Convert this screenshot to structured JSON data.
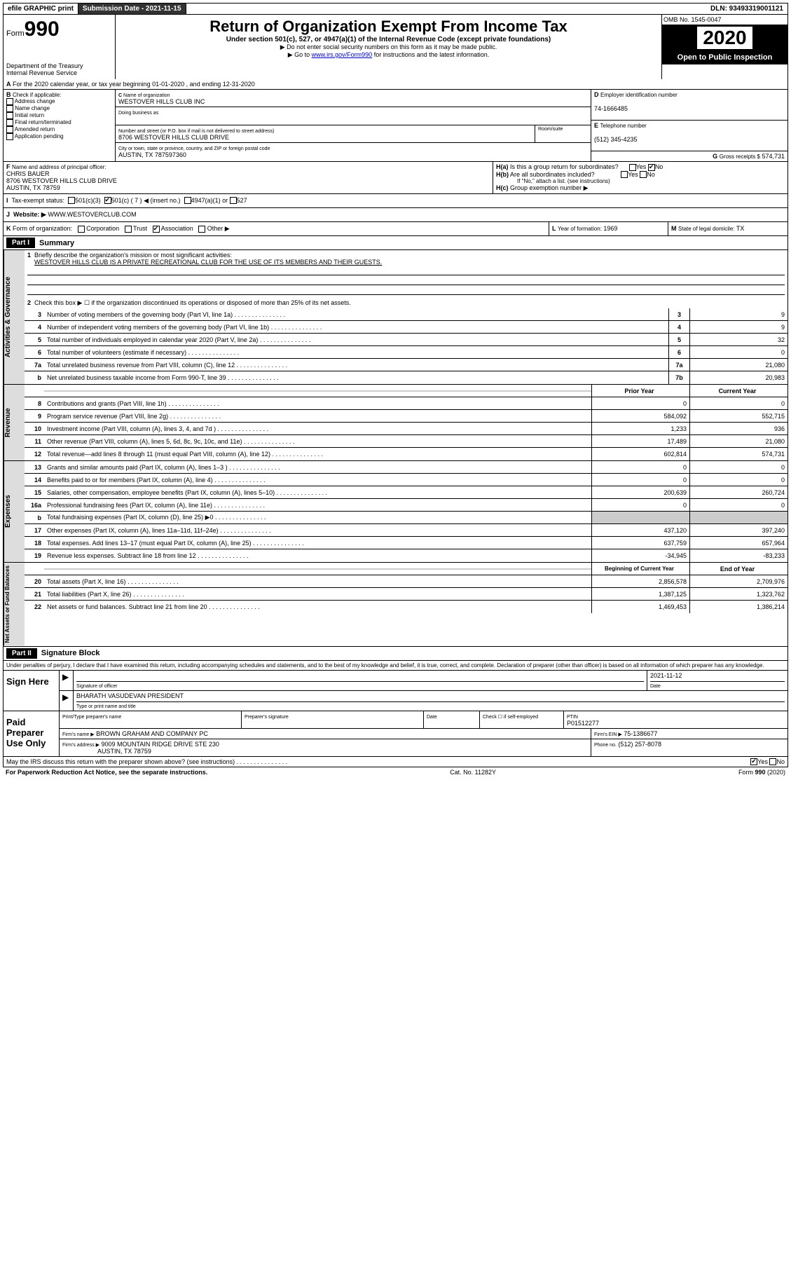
{
  "topbar": {
    "efile": "efile GRAPHIC print",
    "sub_label": "Submission Date - 2021-11-15",
    "dln": "DLN: 93493319001121"
  },
  "header": {
    "form_prefix": "Form",
    "form_num": "990",
    "dept": "Department of the Treasury\nInternal Revenue Service",
    "title": "Return of Organization Exempt From Income Tax",
    "sub": "Under section 501(c), 527, or 4947(a)(1) of the Internal Revenue Code (except private foundations)",
    "note1": "▶ Do not enter social security numbers on this form as it may be made public.",
    "note2_pre": "▶ Go to ",
    "note2_link": "www.irs.gov/Form990",
    "note2_post": " for instructions and the latest information.",
    "omb": "OMB No. 1545-0047",
    "year": "2020",
    "pub": "Open to Public Inspection"
  },
  "A": {
    "text": "For the 2020 calendar year, or tax year beginning 01-01-2020    , and ending 12-31-2020"
  },
  "B": {
    "label": "Check if applicable:",
    "opts": [
      "Address change",
      "Name change",
      "Initial return",
      "Final return/terminated",
      "Amended return",
      "Application pending"
    ]
  },
  "C": {
    "name_lbl": "Name of organization",
    "name": "WESTOVER HILLS CLUB INC",
    "dba_lbl": "Doing business as",
    "addr_lbl": "Number and street (or P.O. box if mail is not delivered to street address)",
    "room_lbl": "Room/suite",
    "addr": "8706 WESTOVER HILLS CLUB DRIVE",
    "city_lbl": "City or town, state or province, country, and ZIP or foreign postal code",
    "city": "AUSTIN, TX  787597360"
  },
  "D": {
    "lbl": "Employer identification number",
    "val": "74-1666485"
  },
  "E": {
    "lbl": "Telephone number",
    "val": "(512) 345-4235"
  },
  "G": {
    "lbl": "Gross receipts $",
    "val": "574,731"
  },
  "F": {
    "lbl": "Name and address of principal officer:",
    "name": "CHRIS BAUER",
    "addr": "8706 WESTOVER HILLS CLUB DRIVE",
    "city": "AUSTIN, TX  78759"
  },
  "H": {
    "a_lbl": "Is this a group return for subordinates?",
    "b_lbl": "Are all subordinates included?",
    "b_note": "If \"No,\" attach a list. (see instructions)",
    "c_lbl": "Group exemption number ▶"
  },
  "I": {
    "lbl": "Tax-exempt status:",
    "o1": "501(c)(3)",
    "o2": "501(c) ( 7 ) ◀ (insert no.)",
    "o3": "4947(a)(1) or",
    "o4": "527"
  },
  "J": {
    "lbl": "Website: ▶",
    "val": "WWW.WESTOVERCLUB.COM"
  },
  "K": {
    "lbl": "Form of organization:",
    "o1": "Corporation",
    "o2": "Trust",
    "o3": "Association",
    "o4": "Other ▶"
  },
  "L": {
    "lbl": "Year of formation:",
    "val": "1969"
  },
  "M": {
    "lbl": "State of legal domicile:",
    "val": "TX"
  },
  "part1": {
    "hdr": "Part I",
    "title": "Summary"
  },
  "summary": {
    "l1_lbl": "Briefly describe the organization's mission or most significant activities:",
    "l1_val": "WESTOVER HILLS CLUB IS A PRIVATE RECREATIONAL CLUB FOR THE USE OF ITS MEMBERS AND THEIR GUESTS.",
    "l2_lbl": "Check this box ▶ ☐  if the organization discontinued its operations or disposed of more than 25% of its net assets."
  },
  "gov_rows": [
    {
      "n": "3",
      "t": "Number of voting members of the governing body (Part VI, line 1a)",
      "b": "3",
      "v": "9"
    },
    {
      "n": "4",
      "t": "Number of independent voting members of the governing body (Part VI, line 1b)",
      "b": "4",
      "v": "9"
    },
    {
      "n": "5",
      "t": "Total number of individuals employed in calendar year 2020 (Part V, line 2a)",
      "b": "5",
      "v": "32"
    },
    {
      "n": "6",
      "t": "Total number of volunteers (estimate if necessary)",
      "b": "6",
      "v": "0"
    },
    {
      "n": "7a",
      "t": "Total unrelated business revenue from Part VIII, column (C), line 12",
      "b": "7a",
      "v": "21,080"
    },
    {
      "n": "b",
      "t": "Net unrelated business taxable income from Form 990-T, line 39",
      "b": "7b",
      "v": "20,983"
    }
  ],
  "col_hdr": {
    "prior": "Prior Year",
    "curr": "Current Year"
  },
  "rev_rows": [
    {
      "n": "8",
      "t": "Contributions and grants (Part VIII, line 1h)",
      "p": "0",
      "c": "0"
    },
    {
      "n": "9",
      "t": "Program service revenue (Part VIII, line 2g)",
      "p": "584,092",
      "c": "552,715"
    },
    {
      "n": "10",
      "t": "Investment income (Part VIII, column (A), lines 3, 4, and 7d )",
      "p": "1,233",
      "c": "936"
    },
    {
      "n": "11",
      "t": "Other revenue (Part VIII, column (A), lines 5, 6d, 8c, 9c, 10c, and 11e)",
      "p": "17,489",
      "c": "21,080"
    },
    {
      "n": "12",
      "t": "Total revenue—add lines 8 through 11 (must equal Part VIII, column (A), line 12)",
      "p": "602,814",
      "c": "574,731"
    }
  ],
  "exp_rows": [
    {
      "n": "13",
      "t": "Grants and similar amounts paid (Part IX, column (A), lines 1–3 )",
      "p": "0",
      "c": "0"
    },
    {
      "n": "14",
      "t": "Benefits paid to or for members (Part IX, column (A), line 4)",
      "p": "0",
      "c": "0"
    },
    {
      "n": "15",
      "t": "Salaries, other compensation, employee benefits (Part IX, column (A), lines 5–10)",
      "p": "200,639",
      "c": "260,724"
    },
    {
      "n": "16a",
      "t": "Professional fundraising fees (Part IX, column (A), line 11e)",
      "p": "0",
      "c": "0"
    },
    {
      "n": "b",
      "t": "Total fundraising expenses (Part IX, column (D), line 25) ▶0",
      "p": "SHADE",
      "c": "SHADE"
    },
    {
      "n": "17",
      "t": "Other expenses (Part IX, column (A), lines 11a–11d, 11f–24e)",
      "p": "437,120",
      "c": "397,240"
    },
    {
      "n": "18",
      "t": "Total expenses. Add lines 13–17 (must equal Part IX, column (A), line 25)",
      "p": "637,759",
      "c": "657,964"
    },
    {
      "n": "19",
      "t": "Revenue less expenses. Subtract line 18 from line 12",
      "p": "-34,945",
      "c": "-83,233"
    }
  ],
  "na_hdr": {
    "beg": "Beginning of Current Year",
    "end": "End of Year"
  },
  "na_rows": [
    {
      "n": "20",
      "t": "Total assets (Part X, line 16)",
      "p": "2,856,578",
      "c": "2,709,976"
    },
    {
      "n": "21",
      "t": "Total liabilities (Part X, line 26)",
      "p": "1,387,125",
      "c": "1,323,762"
    },
    {
      "n": "22",
      "t": "Net assets or fund balances. Subtract line 21 from line 20",
      "p": "1,469,453",
      "c": "1,386,214"
    }
  ],
  "part2": {
    "hdr": "Part II",
    "title": "Signature Block"
  },
  "perjury": "Under penalties of perjury, I declare that I have examined this return, including accompanying schedules and statements, and to the best of my knowledge and belief, it is true, correct, and complete. Declaration of preparer (other than officer) is based on all information of which preparer has any knowledge.",
  "sign": {
    "here": "Sign Here",
    "sig_lbl": "Signature of officer",
    "date_lbl": "Date",
    "date": "2021-11-12",
    "name": "BHARATH VASUDEVAN PRESIDENT",
    "name_lbl": "Type or print name and title"
  },
  "prep": {
    "title": "Paid Preparer Use Only",
    "r1c1": "Print/Type preparer's name",
    "r1c2": "Preparer's signature",
    "r1c3": "Date",
    "r1c4_lbl": "Check ☐ if self-employed",
    "r1c5_lbl": "PTIN",
    "r1c5": "P01512277",
    "r2c1_lbl": "Firm's name      ▶",
    "r2c1": "BROWN GRAHAM AND COMPANY PC",
    "r2c2_lbl": "Firm's EIN ▶",
    "r2c2": "75-1386677",
    "r3c1_lbl": "Firm's address ▶",
    "r3c1": "9009 MOUNTAIN RIDGE DRIVE STE 230",
    "r3c1b": "AUSTIN, TX  78759",
    "r3c2_lbl": "Phone no.",
    "r3c2": "(512) 257-8078"
  },
  "discuss": "May the IRS discuss this return with the preparer shown above? (see instructions)",
  "footer": {
    "left": "For Paperwork Reduction Act Notice, see the separate instructions.",
    "mid": "Cat. No. 11282Y",
    "right": "Form 990 (2020)"
  },
  "colors": {
    "link": "#0000cc",
    "shade": "#cccccc",
    "black": "#000000"
  }
}
